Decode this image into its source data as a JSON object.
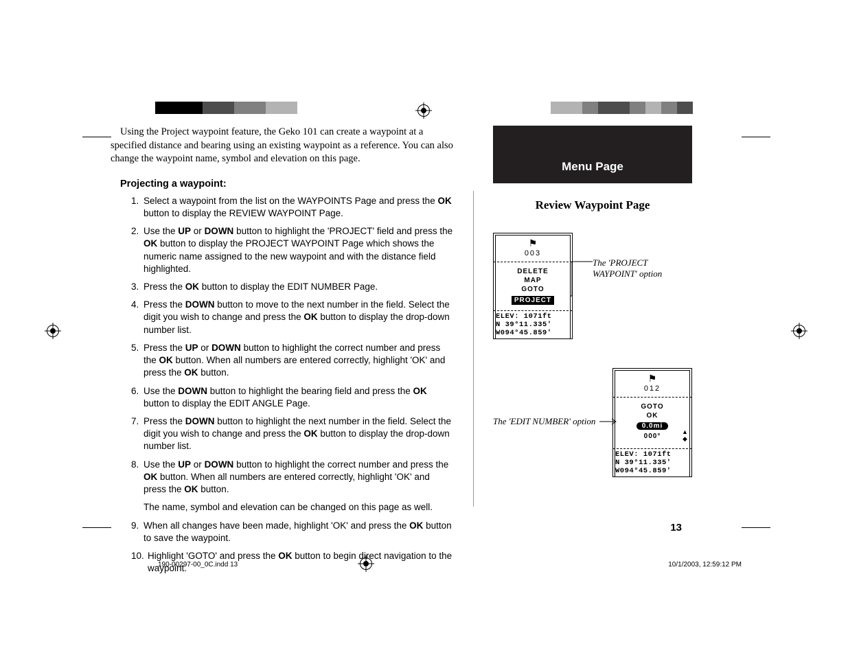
{
  "intro": "Using the Project waypoint feature, the Geko 101 can create a waypoint at a specified distance and bearing using an existing waypoint as a reference. You can also change the waypoint name, symbol and elevation on this page.",
  "section_title": "Projecting a waypoint:",
  "steps": {
    "s1a": "Select a waypoint from the list on the WAYPOINTS Page and press the ",
    "s1b": " button to display the REVIEW WAYPOINT Page.",
    "s2a": "Use the ",
    "s2b": " or ",
    "s2c": " button to highlight the 'PROJECT' field and press the ",
    "s2d": " button to display the PROJECT WAYPOINT Page which shows the numeric name assigned to the new waypoint and with the distance field highlighted.",
    "s3a": "Press the ",
    "s3b": " button to display the EDIT NUMBER Page.",
    "s4a": "Press the ",
    "s4b": " button to move to the next number in the field. Select the digit you wish to change and press the ",
    "s4c": " button to display the drop-down number list.",
    "s5a": "Press the ",
    "s5b": " or ",
    "s5c": " button to highlight the correct number and press the ",
    "s5d": " button. When all numbers are entered correctly, highlight 'OK' and press the ",
    "s5e": " button.",
    "s6a": "Use the ",
    "s6b": " button to highlight the bearing field and press the ",
    "s6c": " button to display the EDIT ANGLE Page.",
    "s7a": "Press the ",
    "s7b": " button to highlight the next number in the field. Select the digit you wish to change and press the ",
    "s7c": " button to display the drop-down number list.",
    "s8a": "Use the ",
    "s8b": " or ",
    "s8c": " button to highlight the correct number and press the ",
    "s8d": " button. When all numbers are entered correctly, highlight 'OK' and press the ",
    "s8e": " button.",
    "s8aux": "The name, symbol and elevation can be changed on this page as well.",
    "s9a": "When all changes have been made, highlight 'OK' and press the ",
    "s9b": " button to save the waypoint.",
    "s10a": "Highlight 'GOTO' and press the ",
    "s10b": " button to begin direct navigation to the waypoint."
  },
  "bold": {
    "ok": "OK",
    "up": "UP",
    "down": "DOWN"
  },
  "right": {
    "menu_bar": "Menu Page",
    "subhead": "Review Waypoint Page",
    "caption1_l1": "The 'PROJECT",
    "caption1_l2": "WAYPOINT' option",
    "caption2": "The 'EDIT NUMBER' option"
  },
  "device1": {
    "num": "003",
    "items": [
      "DELETE",
      "MAP",
      "GOTO"
    ],
    "selected": "PROJECT",
    "elev": "ELEV: 1071ft",
    "lat": "N 39°11.335'",
    "lon": "W094°45.859'"
  },
  "device2": {
    "num": "012",
    "items": [
      "GOTO",
      "OK"
    ],
    "selected": "0.0mi",
    "deg": "000°",
    "elev": "ELEV: 1071ft",
    "lat": "N 39°11.335'",
    "lon": "W094°45.859'"
  },
  "page_number": "13",
  "footer": {
    "left": "190-00297-00_0C.indd   13",
    "right": "10/1/2003, 12:59:12 PM"
  },
  "colorbar_left": [
    "#000000",
    "#000000",
    "#000000",
    "#4d4d4d",
    "#4d4d4d",
    "#808080",
    "#808080",
    "#b3b3b3",
    "#b3b3b3",
    "#ffffff"
  ],
  "colorbar_right": [
    "#ffffff",
    "#b3b3b3",
    "#b3b3b3",
    "#808080",
    "#4d4d4d",
    "#4d4d4d",
    "#808080",
    "#b3b3b3",
    "#808080",
    "#4d4d4d"
  ]
}
